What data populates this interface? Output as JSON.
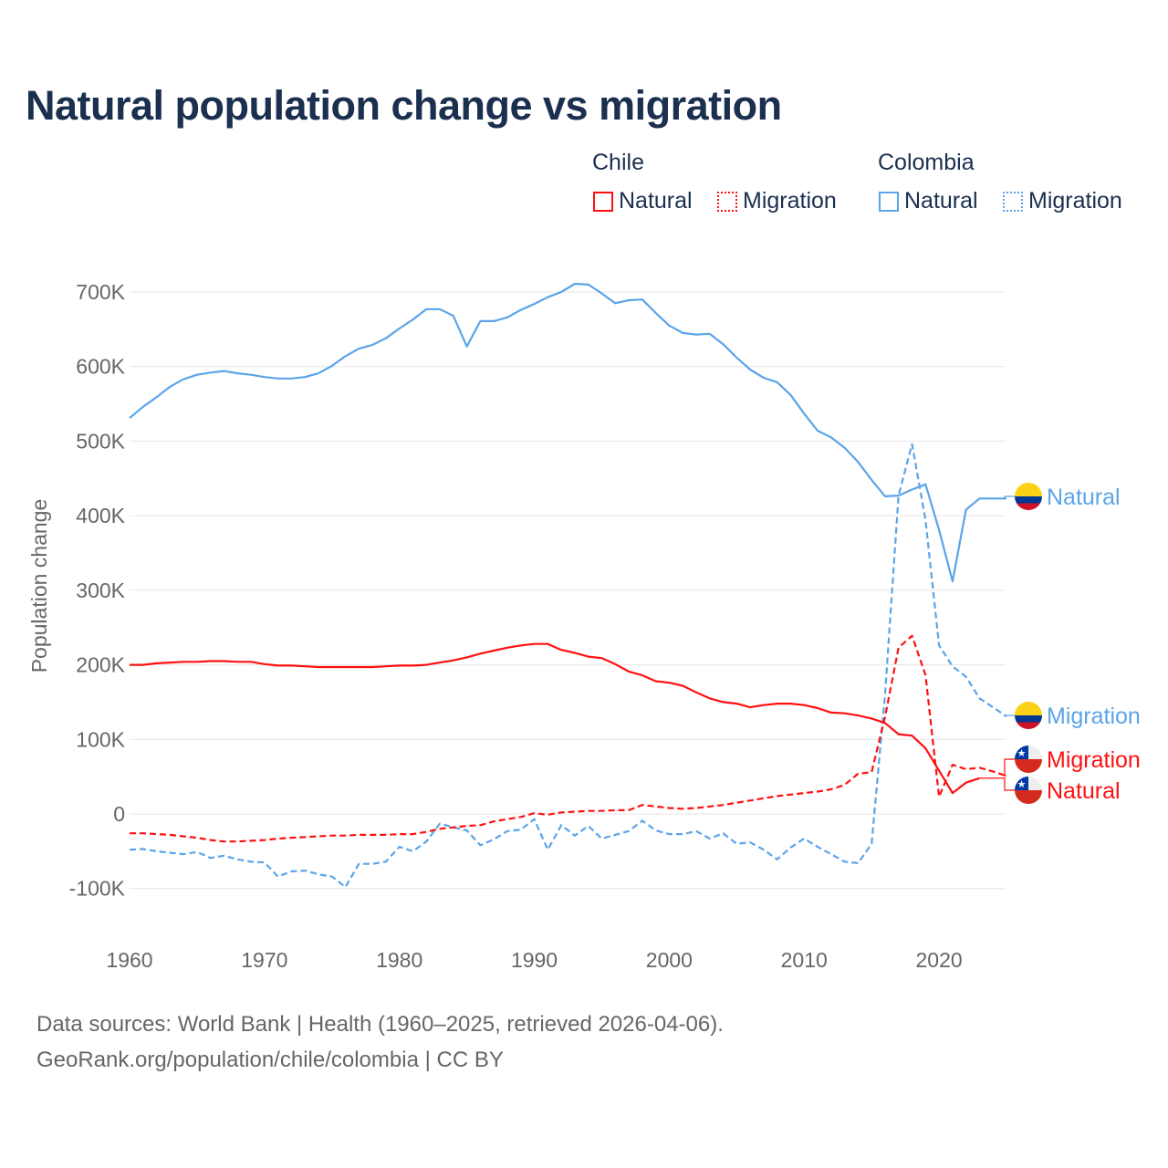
{
  "title": "Natural population change vs migration",
  "legend": {
    "groups": [
      {
        "name": "Chile",
        "items": [
          "Natural",
          "Migration"
        ]
      },
      {
        "name": "Colombia",
        "items": [
          "Natural",
          "Migration"
        ]
      }
    ]
  },
  "colors": {
    "chile": "#ff1010",
    "colombia": "#5ba4e8",
    "title": "#1b2f4f",
    "axis_text": "#666666",
    "grid": "#e6e6e6"
  },
  "footer": {
    "line1": "Data sources: World Bank | Health (1960–2025, retrieved 2026-04-06).",
    "line2": "GeoRank.org/population/chile/colombia | CC BY"
  },
  "chart_data": {
    "type": "line",
    "title": "Natural population change vs migration",
    "xlabel": "",
    "ylabel": "Population change",
    "xlim": [
      1960,
      2025
    ],
    "ylim": [
      -150000,
      730000
    ],
    "x_ticks": [
      1960,
      1970,
      1980,
      1990,
      2000,
      2010,
      2020
    ],
    "x_tick_labels": [
      "1960",
      "1970",
      "1980",
      "1990",
      "2000",
      "2010",
      "2020"
    ],
    "y_ticks": [
      700000,
      600000,
      500000,
      400000,
      300000,
      200000,
      100000,
      0,
      -100000
    ],
    "y_tick_labels": [
      "700K",
      "600K",
      "500K",
      "400K",
      "300K",
      "200K",
      "100K",
      "0",
      "-100K"
    ],
    "grid": true,
    "legend_placement": "top-right",
    "x_start": 1960,
    "series": [
      {
        "name": "Colombia Natural",
        "country": "Colombia",
        "kind": "Natural",
        "end_label": "Natural",
        "style": "solid",
        "values_k": [
          531,
          546,
          559,
          573,
          583,
          589,
          592,
          594,
          591,
          589,
          586,
          584,
          584,
          586,
          591,
          601,
          614,
          624,
          629,
          638,
          651,
          663,
          677,
          677,
          668,
          627,
          661,
          661,
          666,
          676,
          684,
          693,
          700,
          711,
          710,
          698,
          685,
          689,
          690,
          672,
          655,
          645,
          643,
          644,
          630,
          612,
          596,
          585,
          579,
          562,
          537,
          514,
          505,
          491,
          472,
          448,
          426,
          427,
          435,
          442,
          381,
          312,
          408,
          423,
          423,
          423
        ]
      },
      {
        "name": "Colombia Migration",
        "country": "Colombia",
        "kind": "Migration",
        "end_label": "Migration",
        "style": "dashed",
        "values_k": [
          -48,
          -47,
          -50,
          -52,
          -54,
          -51,
          -59,
          -56,
          -61,
          -64,
          -65,
          -84,
          -77,
          -76,
          -81,
          -84,
          -98,
          -67,
          -67,
          -64,
          -44,
          -50,
          -37,
          -13,
          -18,
          -22,
          -42,
          -34,
          -23,
          -21,
          -7,
          -48,
          -15,
          -29,
          -16,
          -33,
          -28,
          -23,
          -9,
          -22,
          -27,
          -27,
          -23,
          -33,
          -26,
          -40,
          -38,
          -48,
          -61,
          -45,
          -33,
          -44,
          -54,
          -64,
          -66,
          -40,
          160,
          427,
          496,
          394,
          226,
          198,
          184,
          155,
          143,
          131
        ]
      },
      {
        "name": "Chile Migration",
        "country": "Chile",
        "kind": "Migration",
        "end_label": "Migration",
        "style": "dashed",
        "values_k": [
          -26,
          -26,
          -27,
          -28,
          -30,
          -32,
          -35,
          -37,
          -37,
          -36,
          -35,
          -33,
          -32,
          -31,
          -30,
          -29,
          -29,
          -28,
          -28,
          -28,
          -27,
          -27,
          -24,
          -20,
          -18,
          -16,
          -15,
          -10,
          -7,
          -4,
          1,
          -1,
          2,
          3,
          4,
          4,
          5,
          5,
          12,
          10,
          8,
          7,
          8,
          10,
          12,
          15,
          18,
          21,
          24,
          26,
          28,
          30,
          33,
          39,
          54,
          56,
          130,
          223,
          239,
          186,
          23,
          66,
          60,
          62,
          57,
          51
        ]
      },
      {
        "name": "Chile Natural",
        "country": "Chile",
        "kind": "Natural",
        "end_label": "Natural",
        "style": "solid",
        "values_k": [
          200,
          200,
          202,
          203,
          204,
          204,
          205,
          205,
          204,
          204,
          201,
          199,
          199,
          198,
          197,
          197,
          197,
          197,
          197,
          198,
          199,
          199,
          200,
          203,
          206,
          210,
          215,
          219,
          223,
          226,
          228,
          228,
          220,
          216,
          211,
          209,
          201,
          191,
          186,
          178,
          176,
          172,
          163,
          155,
          150,
          148,
          143,
          146,
          148,
          148,
          146,
          142,
          136,
          135,
          132,
          128,
          122,
          107,
          105,
          88,
          58,
          28,
          42,
          48
        ]
      }
    ]
  }
}
